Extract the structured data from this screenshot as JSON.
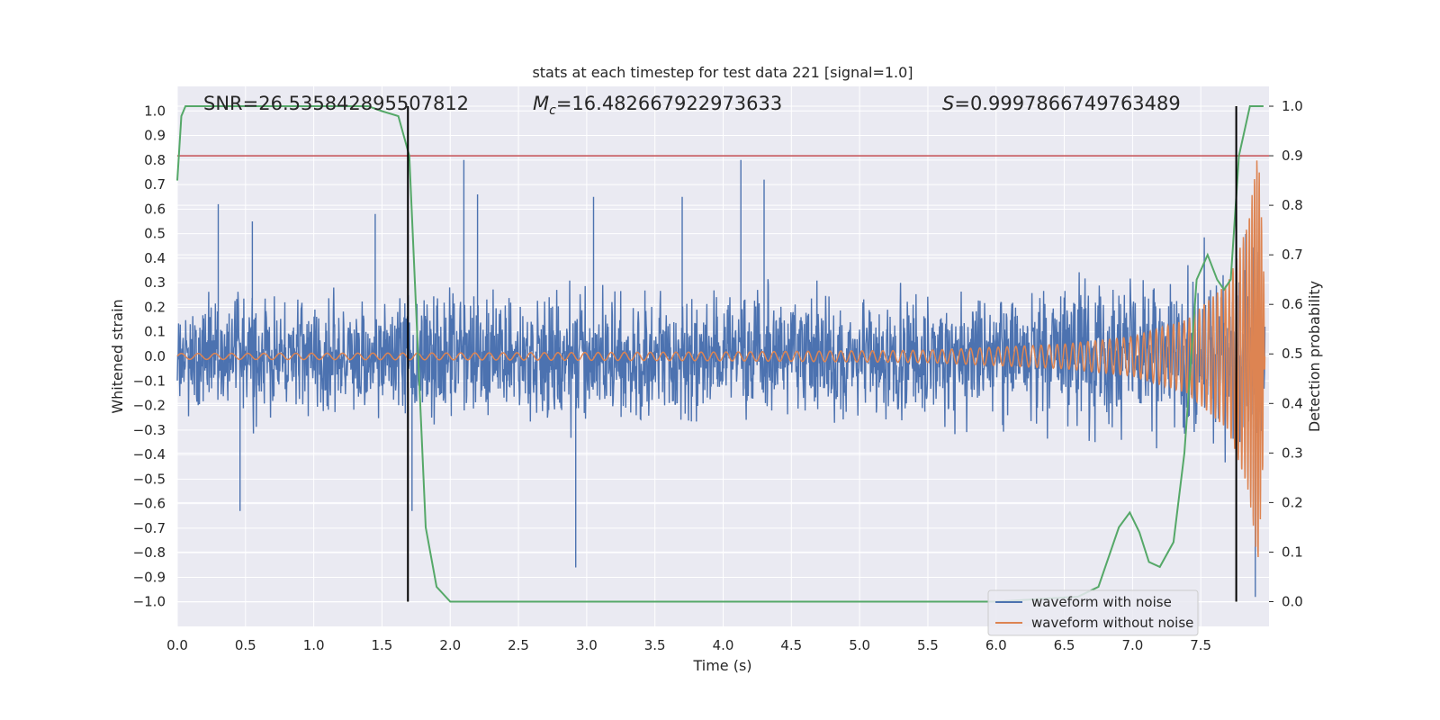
{
  "chart_data": {
    "type": "line",
    "title": "stats at each timestep for test data 221 [signal=1.0]",
    "xlabel": "Time (s)",
    "ylabel_left": "Whitened strain",
    "ylabel_right": "Detection probability",
    "xlim": [
      0.0,
      8.0
    ],
    "ylim_left": [
      -1.1,
      1.1
    ],
    "ylim_right": [
      -0.05,
      1.04
    ],
    "x_ticks": [
      "0.0",
      "0.5",
      "1.0",
      "1.5",
      "2.0",
      "2.5",
      "3.0",
      "3.5",
      "4.0",
      "4.5",
      "5.0",
      "5.5",
      "6.0",
      "6.5",
      "7.0",
      "7.5"
    ],
    "y_ticks_left": [
      "1.0",
      "0.9",
      "0.8",
      "0.7",
      "0.6",
      "0.5",
      "0.4",
      "0.3",
      "0.2",
      "0.1",
      "0.0",
      "−0.1",
      "−0.2",
      "−0.3",
      "−0.4",
      "−0.5",
      "−0.6",
      "−0.7",
      "−0.8",
      "−0.9",
      "−1.0"
    ],
    "y_ticks_right": [
      "1.0",
      "0.9",
      "0.8",
      "0.7",
      "0.6",
      "0.5",
      "0.4",
      "0.3",
      "0.2",
      "0.1",
      "0.0"
    ],
    "grid": true,
    "legend_position": "bottom-right",
    "annotations": {
      "snr": "SNR=26.535842895507812",
      "mc": "=16.482667922973633",
      "s": "=0.9997866749763489"
    },
    "series": [
      {
        "name": "waveform with noise",
        "color": "#4c72b0",
        "amplitude_envelope": [
          [
            0.0,
            0.32
          ],
          [
            1.0,
            0.32
          ],
          [
            2.0,
            0.34
          ],
          [
            3.0,
            0.33
          ],
          [
            4.0,
            0.34
          ],
          [
            5.0,
            0.33
          ],
          [
            6.0,
            0.35
          ],
          [
            7.0,
            0.4
          ],
          [
            7.5,
            0.45
          ],
          [
            7.8,
            0.55
          ],
          [
            7.92,
            0.72
          ],
          [
            7.97,
            0.3
          ]
        ],
        "peaks": [
          [
            0.3,
            0.62
          ],
          [
            0.55,
            0.55
          ],
          [
            1.45,
            0.58
          ],
          [
            2.1,
            0.8
          ],
          [
            2.2,
            0.66
          ],
          [
            3.05,
            0.65
          ],
          [
            3.7,
            0.65
          ],
          [
            4.13,
            0.8
          ],
          [
            4.3,
            0.72
          ],
          [
            1.72,
            -0.63
          ],
          [
            2.92,
            -0.86
          ],
          [
            0.46,
            -0.63
          ],
          [
            7.9,
            -0.98
          ]
        ]
      },
      {
        "name": "waveform without noise",
        "color": "#dd8452",
        "amplitude_envelope": [
          [
            0.0,
            0.012
          ],
          [
            2.0,
            0.014
          ],
          [
            4.0,
            0.018
          ],
          [
            5.5,
            0.025
          ],
          [
            6.5,
            0.05
          ],
          [
            7.0,
            0.08
          ],
          [
            7.4,
            0.15
          ],
          [
            7.7,
            0.3
          ],
          [
            7.85,
            0.55
          ],
          [
            7.92,
            0.85
          ],
          [
            7.96,
            0.4
          ],
          [
            7.97,
            0.0
          ]
        ],
        "cycles_per_second": [
          [
            0.0,
            8
          ],
          [
            4.0,
            11
          ],
          [
            6.0,
            15
          ],
          [
            7.0,
            20
          ],
          [
            7.5,
            28
          ],
          [
            7.8,
            40
          ],
          [
            7.92,
            60
          ]
        ]
      },
      {
        "name": "detection probability",
        "color": "#55a868",
        "axis": "right",
        "x": [
          0.0,
          0.03,
          0.06,
          0.12,
          0.5,
          1.0,
          1.4,
          1.5,
          1.62,
          1.7,
          1.82,
          1.9,
          2.0,
          3.0,
          4.0,
          5.0,
          6.0,
          6.6,
          6.75,
          6.9,
          6.98,
          7.05,
          7.12,
          7.2,
          7.3,
          7.38,
          7.47,
          7.55,
          7.62,
          7.67,
          7.72,
          7.78,
          7.86,
          7.93,
          7.96
        ],
        "y": [
          0.85,
          0.98,
          1.0,
          1.0,
          1.0,
          1.0,
          1.0,
          0.99,
          0.98,
          0.9,
          0.15,
          0.03,
          0.0,
          0.0,
          0.0,
          0.0,
          0.0,
          0.01,
          0.03,
          0.15,
          0.18,
          0.14,
          0.08,
          0.07,
          0.12,
          0.3,
          0.65,
          0.7,
          0.65,
          0.63,
          0.65,
          0.9,
          1.0,
          1.0,
          1.0
        ]
      }
    ],
    "threshold_line": {
      "value": 0.9,
      "axis": "right",
      "color": "#c44e52"
    },
    "vertical_markers": {
      "x": [
        1.69,
        7.76
      ],
      "color": "#000000"
    }
  }
}
